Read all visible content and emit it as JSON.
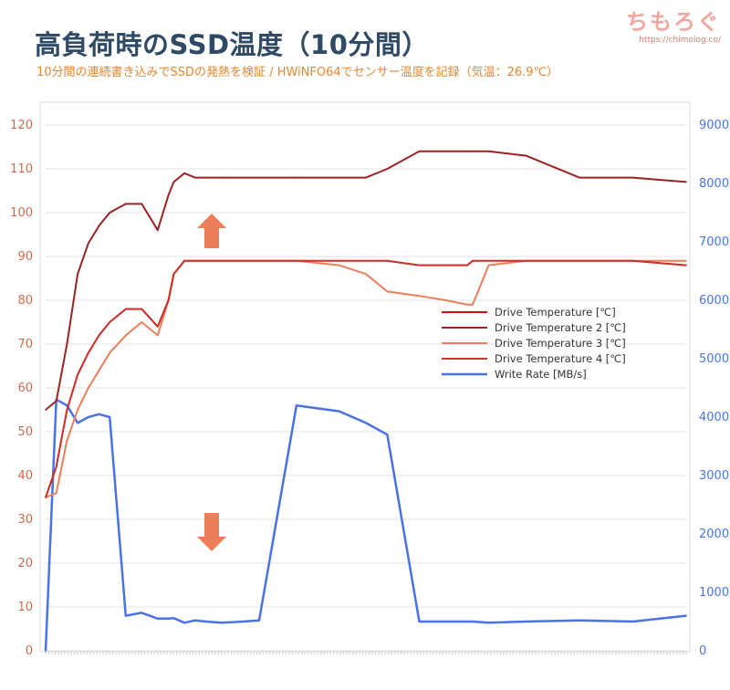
{
  "header": {
    "title": "高負荷時のSSD温度（10分間）",
    "subtitle": "10分間の連続書き込みでSSDの発熱を検証 / HWiNFO64でセンサー温度を記録（気温：26.9℃）",
    "brand_name": "ちもろぐ",
    "brand_url": "https://chimolog.co/"
  },
  "chart_data": {
    "type": "line",
    "title": "高負荷時のSSD温度（10分間）",
    "subtitle": "10分間の連続書き込みでSSDの発熱を検証 / HWiNFO64でセンサー温度を記録（気温：26.9℃）",
    "x": [
      0,
      10,
      20,
      30,
      40,
      50,
      60,
      75,
      90,
      105,
      115,
      120,
      130,
      140,
      150,
      165,
      185,
      200,
      235,
      275,
      300,
      320,
      350,
      375,
      395,
      400,
      415,
      450,
      500,
      550,
      600
    ],
    "x_unit": "s",
    "left_axis": {
      "ylim": [
        0,
        120
      ],
      "ticks": [
        0,
        10,
        20,
        30,
        40,
        50,
        60,
        70,
        80,
        90,
        100,
        110,
        120
      ]
    },
    "right_axis": {
      "ylim": [
        0,
        9000
      ],
      "ticks": [
        0,
        1000,
        2000,
        3000,
        4000,
        5000,
        6000,
        7000,
        8000,
        9000
      ]
    },
    "grid": true,
    "legend_position": "center-right",
    "series": [
      {
        "name": "Drive Temperature [℃]",
        "axis": "left",
        "color": "#d90f0f",
        "width": 2,
        "values": [
          35,
          42,
          55,
          63,
          68,
          72,
          75,
          78,
          78,
          74,
          80,
          86,
          89,
          89,
          89,
          89,
          89,
          89,
          89,
          89,
          89,
          89,
          88,
          88,
          88,
          89,
          89,
          89,
          89,
          89,
          88
        ]
      },
      {
        "name": "Drive Temperature 2 [℃]",
        "axis": "left",
        "color": "#9b2323",
        "width": 2,
        "values": [
          55,
          57,
          70,
          86,
          93,
          97,
          100,
          102,
          102,
          96,
          104,
          107,
          109,
          108,
          108,
          108,
          108,
          108,
          108,
          108,
          108,
          110,
          114,
          114,
          114,
          114,
          114,
          113,
          108,
          108,
          107
        ]
      },
      {
        "name": "Drive Temperature 3 [℃]",
        "axis": "left",
        "color": "#ee7d59",
        "width": 2,
        "values": [
          35,
          36,
          48,
          55,
          60,
          64,
          68,
          72,
          75,
          72,
          80,
          86,
          89,
          89,
          89,
          89,
          89,
          89,
          89,
          88,
          86,
          82,
          81,
          80,
          79,
          79,
          88,
          89,
          89,
          89,
          89
        ]
      },
      {
        "name": "Drive Temperature 4 [℃]",
        "axis": "left",
        "color": "#c8352d",
        "width": 1.5,
        "values": [
          35,
          42,
          55,
          63,
          68,
          72,
          75,
          78,
          78,
          74,
          80,
          86,
          89,
          89,
          89,
          89,
          89,
          89,
          89,
          89,
          89,
          89,
          88,
          88,
          88,
          89,
          89,
          89,
          89,
          89,
          88
        ]
      },
      {
        "name": "Write Rate [MB/s]",
        "axis": "right",
        "color": "#4a72e6",
        "width": 2.5,
        "values": [
          0,
          4300,
          4200,
          3900,
          4000,
          4050,
          4000,
          600,
          650,
          550,
          550,
          560,
          480,
          520,
          500,
          480,
          500,
          520,
          4200,
          4100,
          3900,
          3700,
          500,
          500,
          500,
          500,
          480,
          500,
          520,
          500,
          600
        ]
      }
    ]
  }
}
